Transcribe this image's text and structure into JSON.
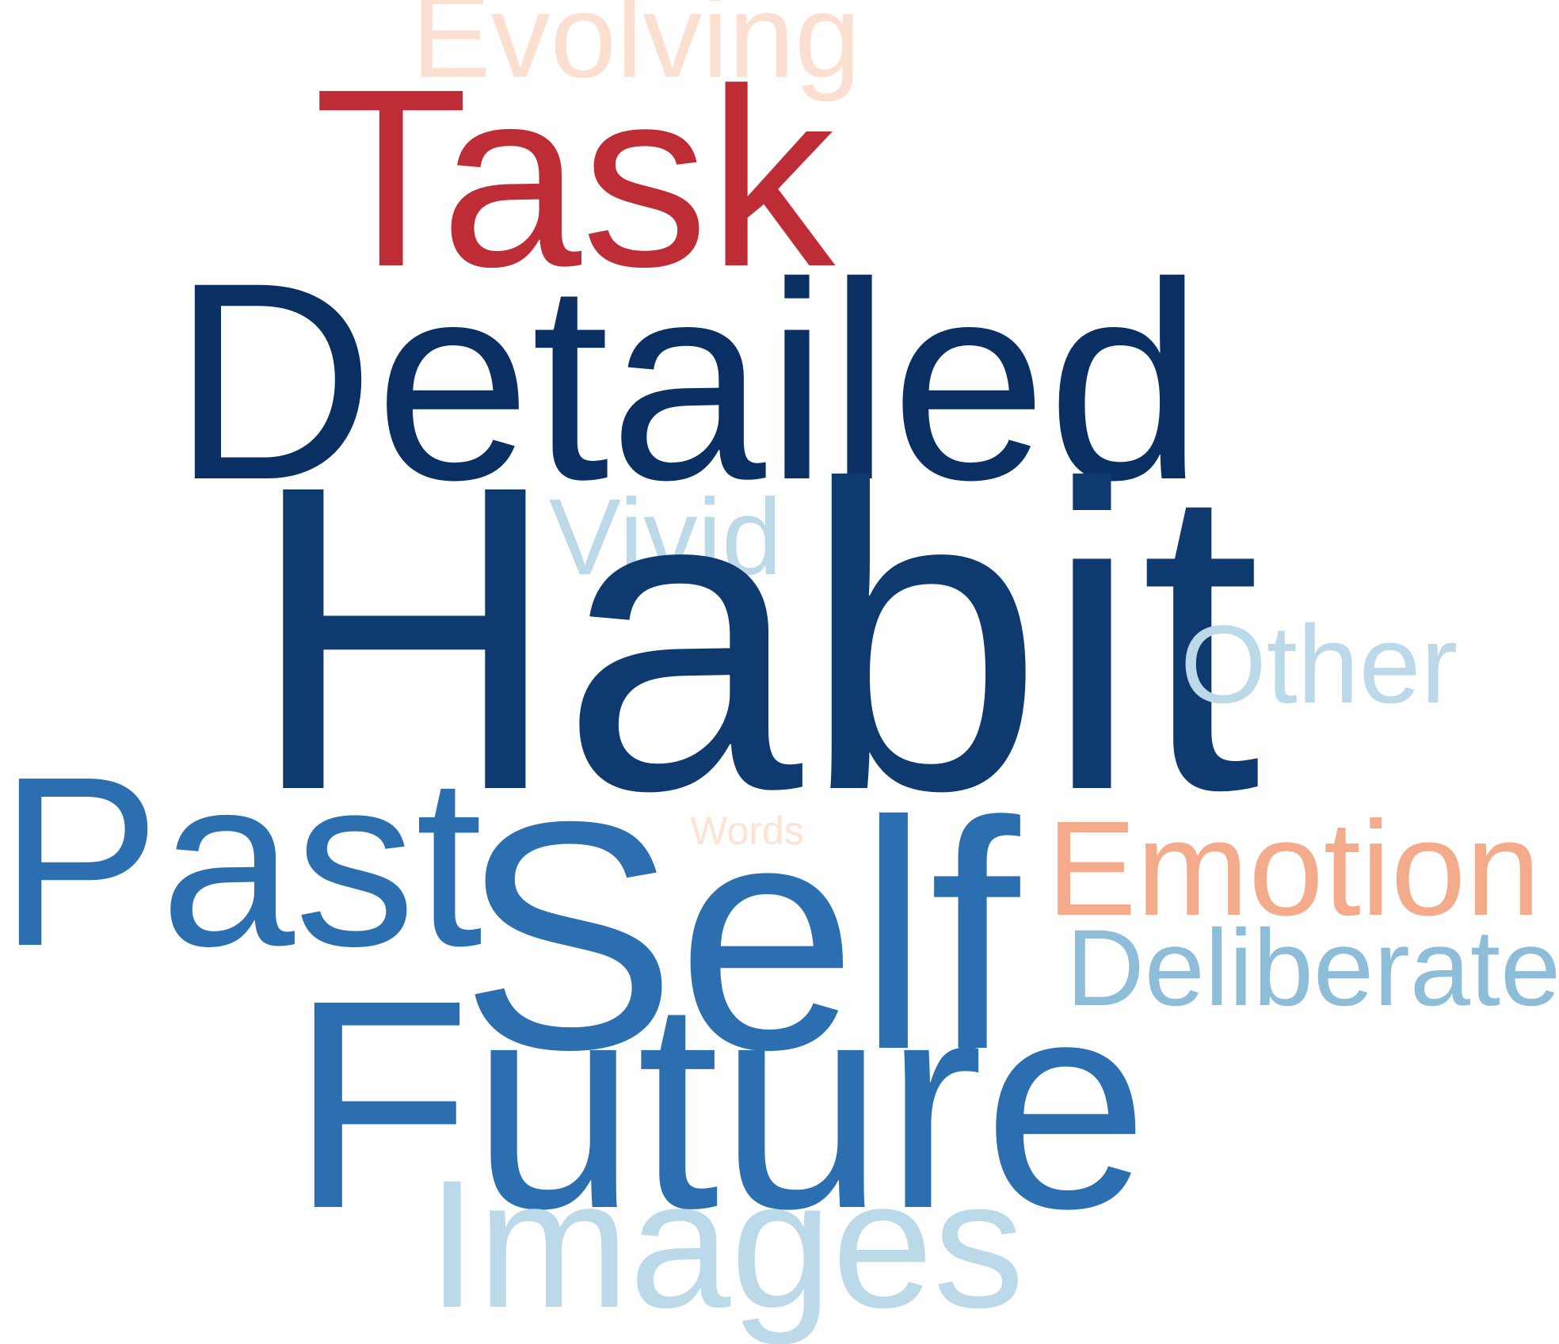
{
  "words": [
    {
      "text": "Evolving",
      "color": "#fbdfd0"
    },
    {
      "text": "Task",
      "color": "#be2c36"
    },
    {
      "text": "Detailed",
      "color": "#0a2f62"
    },
    {
      "text": "Vivid",
      "color": "#bcd9ea"
    },
    {
      "text": "Habit",
      "color": "#0e3a70"
    },
    {
      "text": "Other",
      "color": "#bcd9ea"
    },
    {
      "text": "Past",
      "color": "#2b6fb0"
    },
    {
      "text": "Words",
      "color": "#fbe3d6"
    },
    {
      "text": "Emotion",
      "color": "#f4ab8b"
    },
    {
      "text": "Self",
      "color": "#2b6fb0"
    },
    {
      "text": "Deliberate",
      "color": "#8dbdd9"
    },
    {
      "text": "Future",
      "color": "#2b6fb0"
    },
    {
      "text": "Images",
      "color": "#bcd9ea"
    }
  ]
}
